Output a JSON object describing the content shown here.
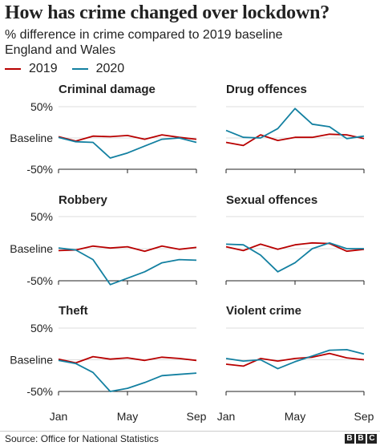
{
  "title": "How has crime changed over lockdown?",
  "subtitle_lines": [
    "% difference in crime compared to 2019 baseline",
    "England and Wales"
  ],
  "legend": [
    {
      "label": "2019",
      "color": "#b80000"
    },
    {
      "label": "2020",
      "color": "#1380a1"
    }
  ],
  "source": "Source: Office for National Statistics",
  "logo_letters": [
    "B",
    "B",
    "C"
  ],
  "colors": {
    "series_2019": "#b80000",
    "series_2020": "#1380a1",
    "grid": "#dddddd",
    "axis": "#222222"
  },
  "chart_data": [
    {
      "type": "line",
      "title": "Criminal damage",
      "x": [
        "Jan",
        "Feb",
        "Mar",
        "Apr",
        "May",
        "Jun",
        "Jul",
        "Aug",
        "Sep"
      ],
      "x_tick_labels": [
        "Jan",
        "May",
        "Sep"
      ],
      "y_tick_labels": [
        "50%",
        "Baseline",
        "-50%"
      ],
      "ylim": [
        -50,
        50
      ],
      "series": [
        {
          "name": "2019",
          "values": [
            2,
            -5,
            3,
            2,
            4,
            -2,
            5,
            1,
            -2
          ]
        },
        {
          "name": "2020",
          "values": [
            1,
            -6,
            -7,
            -32,
            -24,
            -13,
            -2,
            0,
            -7
          ]
        }
      ]
    },
    {
      "type": "line",
      "title": "Drug offences",
      "x": [
        "Jan",
        "Feb",
        "Mar",
        "Apr",
        "May",
        "Jun",
        "Jul",
        "Aug",
        "Sep"
      ],
      "x_tick_labels": [
        "Jan",
        "May",
        "Sep"
      ],
      "y_tick_labels": [],
      "ylim": [
        -50,
        50
      ],
      "series": [
        {
          "name": "2019",
          "values": [
            -7,
            -12,
            5,
            -4,
            1,
            1,
            6,
            5,
            -1
          ]
        },
        {
          "name": "2020",
          "values": [
            12,
            1,
            0,
            15,
            47,
            22,
            18,
            -1,
            3
          ]
        }
      ]
    },
    {
      "type": "line",
      "title": "Robbery",
      "x": [
        "Jan",
        "Feb",
        "Mar",
        "Apr",
        "May",
        "Jun",
        "Jul",
        "Aug",
        "Sep"
      ],
      "x_tick_labels": [
        "Jan",
        "May",
        "Sep"
      ],
      "y_tick_labels": [
        "50%",
        "Baseline",
        "-50%"
      ],
      "ylim": [
        -50,
        50
      ],
      "series": [
        {
          "name": "2019",
          "values": [
            -3,
            -2,
            4,
            1,
            3,
            -4,
            4,
            -1,
            2
          ]
        },
        {
          "name": "2020",
          "values": [
            1,
            -2,
            -17,
            -56,
            -46,
            -36,
            -22,
            -17,
            -18
          ]
        }
      ]
    },
    {
      "type": "line",
      "title": "Sexual offences",
      "x": [
        "Jan",
        "Feb",
        "Mar",
        "Apr",
        "May",
        "Jun",
        "Jul",
        "Aug",
        "Sep"
      ],
      "x_tick_labels": [
        "Jan",
        "May",
        "Sep"
      ],
      "y_tick_labels": [],
      "ylim": [
        -50,
        50
      ],
      "series": [
        {
          "name": "2019",
          "values": [
            3,
            -3,
            7,
            -1,
            6,
            9,
            8,
            -4,
            -1
          ]
        },
        {
          "name": "2020",
          "values": [
            7,
            6,
            -10,
            -36,
            -22,
            0,
            9,
            0,
            0
          ]
        }
      ]
    },
    {
      "type": "line",
      "title": "Theft",
      "x": [
        "Jan",
        "Feb",
        "Mar",
        "Apr",
        "May",
        "Jun",
        "Jul",
        "Aug",
        "Sep"
      ],
      "x_tick_labels": [
        "Jan",
        "May",
        "Sep"
      ],
      "y_tick_labels": [
        "50%",
        "Baseline",
        "-50%"
      ],
      "ylim": [
        -50,
        50
      ],
      "series": [
        {
          "name": "2019",
          "values": [
            1,
            -5,
            5,
            1,
            3,
            -1,
            4,
            2,
            -1
          ]
        },
        {
          "name": "2020",
          "values": [
            -1,
            -6,
            -20,
            -50,
            -45,
            -36,
            -25,
            -23,
            -21
          ]
        }
      ]
    },
    {
      "type": "line",
      "title": "Violent crime",
      "x": [
        "Jan",
        "Feb",
        "Mar",
        "Apr",
        "May",
        "Jun",
        "Jul",
        "Aug",
        "Sep"
      ],
      "x_tick_labels": [
        "Jan",
        "May",
        "Sep"
      ],
      "y_tick_labels": [],
      "ylim": [
        -50,
        50
      ],
      "series": [
        {
          "name": "2019",
          "values": [
            -7,
            -10,
            2,
            -2,
            2,
            4,
            10,
            3,
            0
          ]
        },
        {
          "name": "2020",
          "values": [
            2,
            -2,
            0,
            -14,
            -3,
            6,
            15,
            16,
            9
          ]
        }
      ]
    }
  ]
}
